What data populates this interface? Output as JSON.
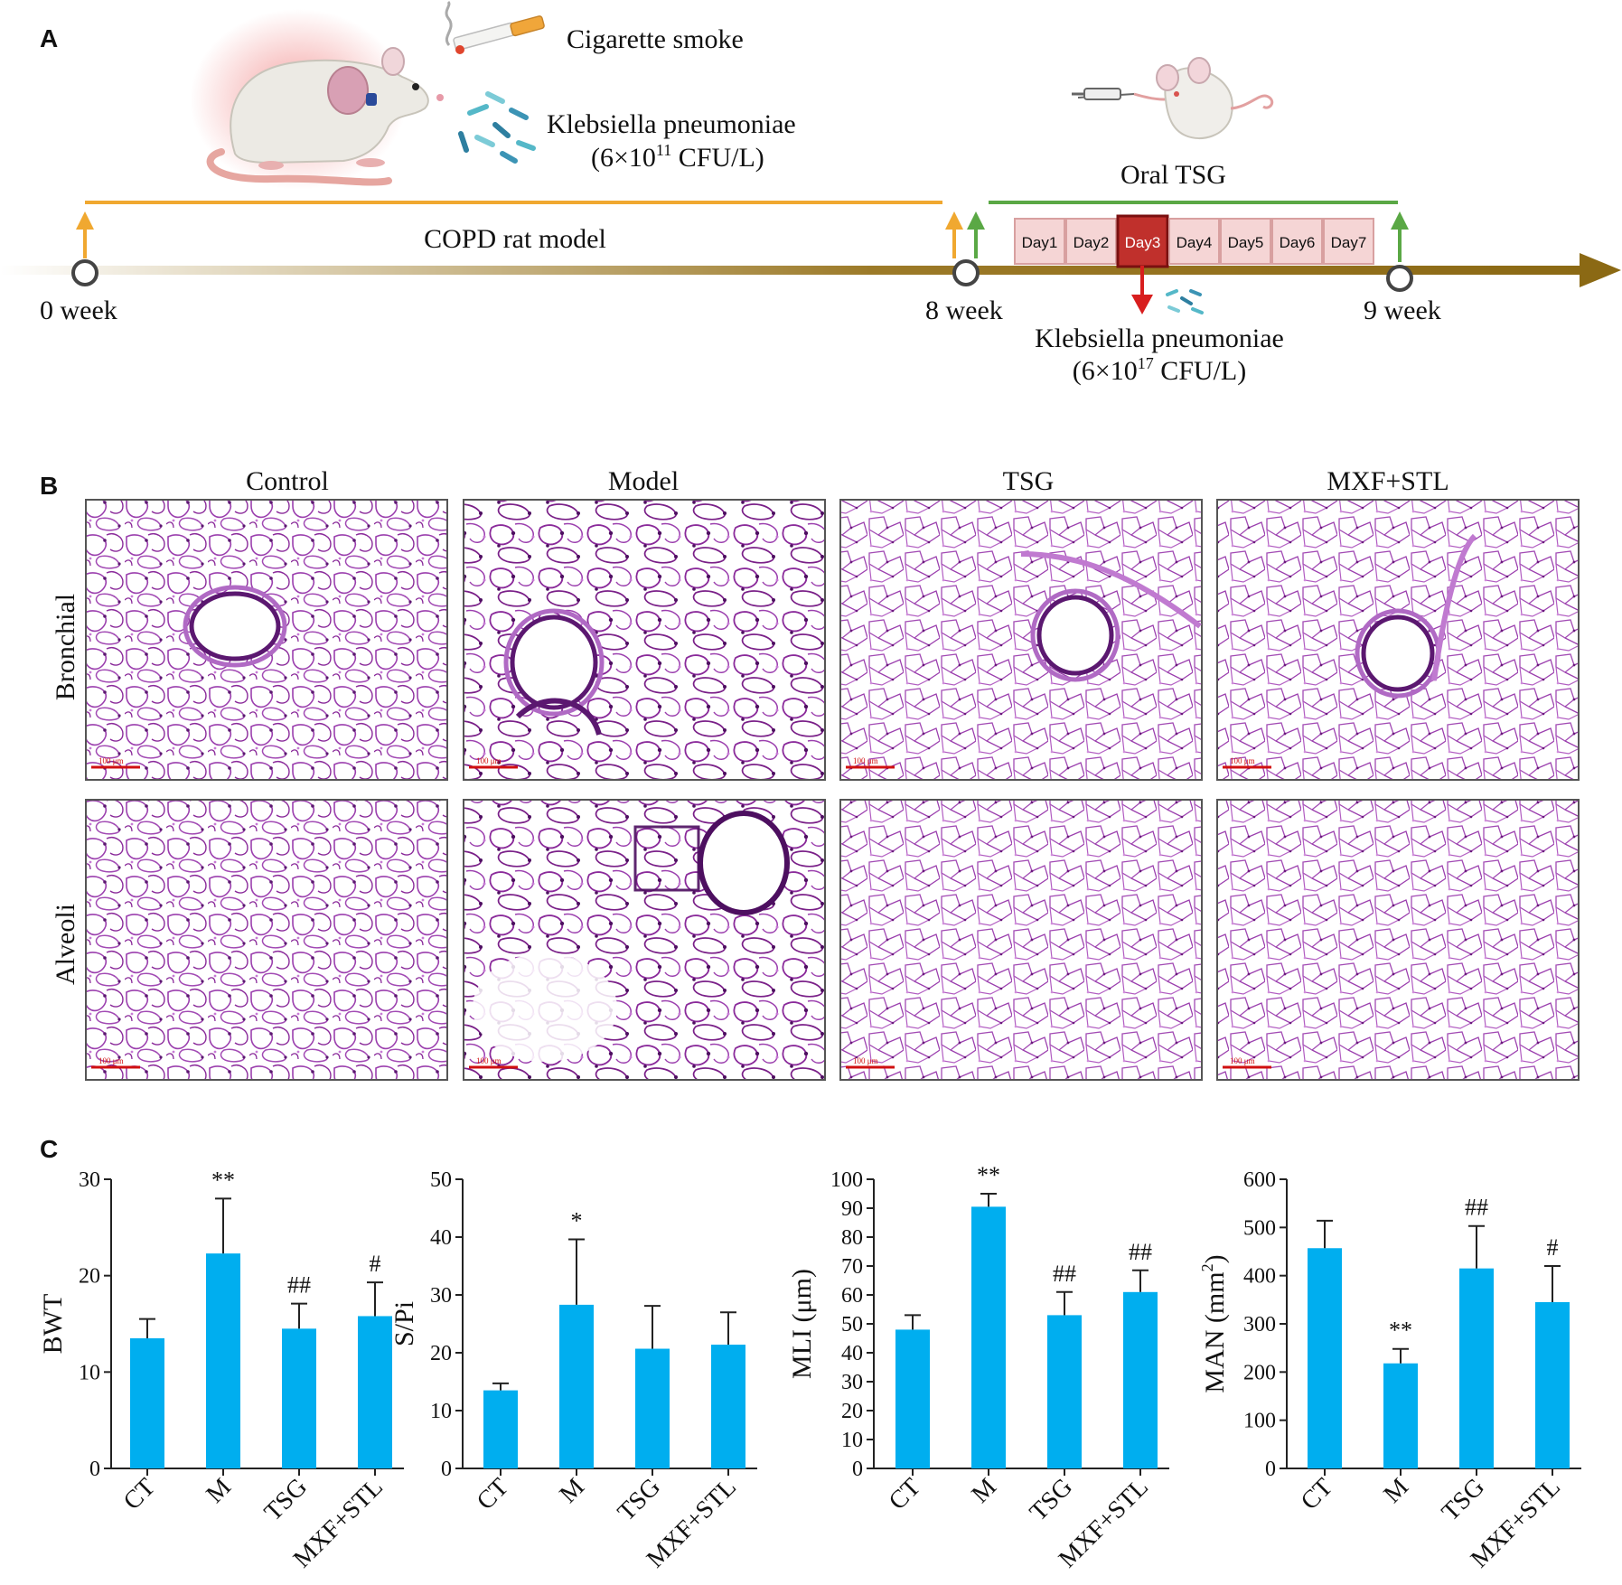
{
  "panel_a": {
    "label": "A",
    "cigarette_smoke": "Cigarette smoke",
    "kp1_name": "Klebsiella pneumoniae",
    "kp1_dose_pre": "(6×10",
    "kp1_dose_exp": "11",
    "kp1_dose_post": " CFU/L)",
    "model_label": "COPD rat model",
    "oral_label": "Oral TSG",
    "days": [
      "Day1",
      "Day2",
      "Day3",
      "Day4",
      "Day5",
      "Day6",
      "Day7"
    ],
    "highlight_day_index": 2,
    "week0": "0 week",
    "week8": "8 week",
    "week9": "9 week",
    "kp2_name": "Klebsiella pneumoniae",
    "kp2_dose_pre": "(6×10",
    "kp2_dose_exp": "17",
    "kp2_dose_post": " CFU/L)",
    "colors": {
      "timeline": "#8b6914",
      "orange_arrow": "#f0a830",
      "green_arrow": "#5aa845",
      "day_fill": "#f5d5d5",
      "day_highlight": "#c0302c",
      "down_arrow": "#d81e1e"
    }
  },
  "panel_b": {
    "label": "B",
    "columns": [
      "Control",
      "Model",
      "TSG",
      "MXF+STL"
    ],
    "rows": [
      "Bronchial",
      "Alveoli"
    ],
    "scale_bar": "100 μm",
    "stain_color": "#8a2a9a"
  },
  "panel_c": {
    "label": "C",
    "bar_color": "#00aeef"
  },
  "chart_data": [
    {
      "type": "bar",
      "categories": [
        "CT",
        "M",
        "TSG",
        "MXF+STL"
      ],
      "values": [
        13.5,
        22.3,
        14.5,
        15.8
      ],
      "errors": [
        2.0,
        5.7,
        2.6,
        3.5
      ],
      "significance": [
        "",
        "**",
        "##",
        "#"
      ],
      "ylabel": "BWT",
      "ylim": [
        0,
        30
      ],
      "yticks": [
        0,
        10,
        20,
        30
      ]
    },
    {
      "type": "bar",
      "categories": [
        "CT",
        "M",
        "TSG",
        "MXF+STL"
      ],
      "values": [
        13.5,
        28.3,
        20.7,
        21.4
      ],
      "errors": [
        1.2,
        11.3,
        7.4,
        5.6
      ],
      "significance": [
        "",
        "*",
        "",
        ""
      ],
      "ylabel": "S/Pi",
      "ylim": [
        0,
        50
      ],
      "yticks": [
        0,
        10,
        20,
        30,
        40,
        50
      ]
    },
    {
      "type": "bar",
      "categories": [
        "CT",
        "M",
        "TSG",
        "MXF+STL"
      ],
      "values": [
        48,
        90.5,
        53,
        61
      ],
      "errors": [
        5,
        4.5,
        8,
        7.5
      ],
      "significance": [
        "",
        "**",
        "##",
        "##"
      ],
      "ylabel": "MLI (μm)",
      "ylim": [
        0,
        100
      ],
      "yticks": [
        0,
        10,
        20,
        30,
        40,
        50,
        60,
        70,
        80,
        90,
        100
      ]
    },
    {
      "type": "bar",
      "categories": [
        "CT",
        "M",
        "TSG",
        "MXF+STL"
      ],
      "values": [
        457,
        218,
        415,
        345
      ],
      "errors": [
        57,
        30,
        88,
        75
      ],
      "significance": [
        "",
        "**",
        "##",
        "#"
      ],
      "ylabel": "MAN (mm2)",
      "ylabel_main": "MAN (mm",
      "ylabel_sup": "2",
      "ylabel_end": ")",
      "ylim": [
        0,
        600
      ],
      "yticks": [
        0,
        100,
        200,
        300,
        400,
        500,
        600
      ]
    }
  ]
}
